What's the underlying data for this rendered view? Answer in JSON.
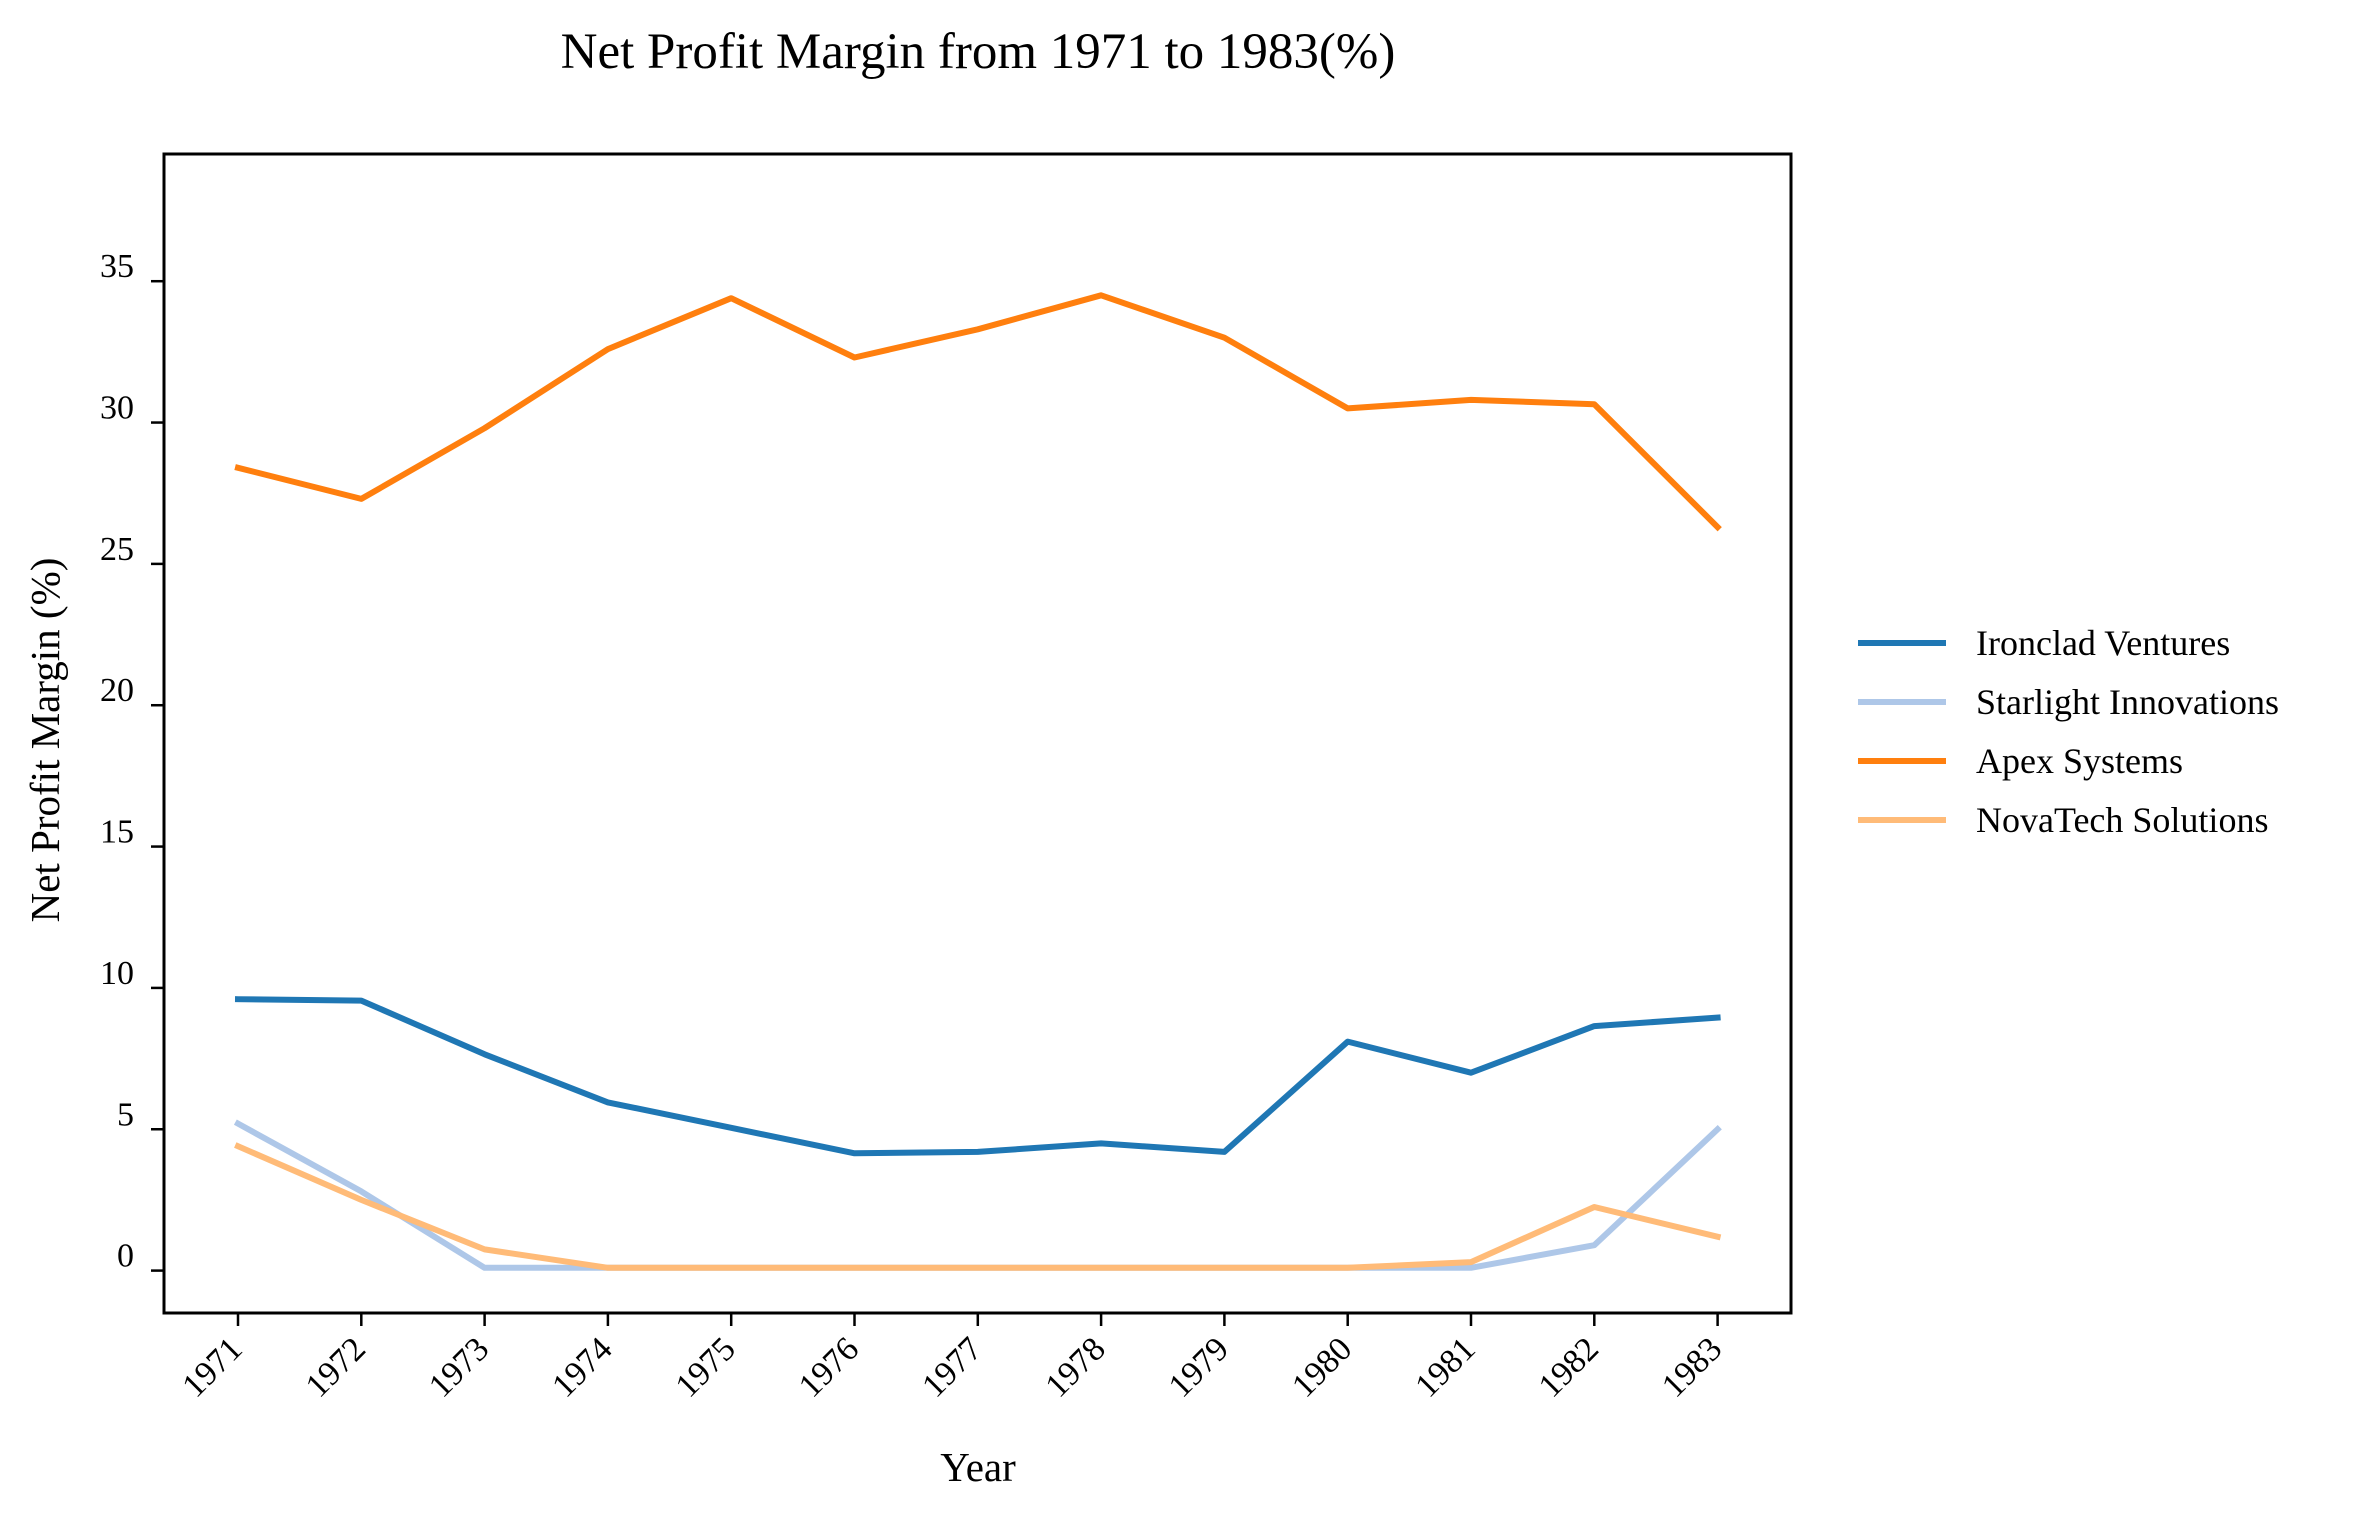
{
  "chart_data": {
    "type": "line",
    "title": "Net Profit Margin from 1971 to 1983(%)",
    "xlabel": "Year",
    "ylabel": "Net Profit Margin (%)",
    "ylim": [
      -1.5,
      39.5
    ],
    "yticks": [
      0,
      5,
      10,
      15,
      20,
      25,
      30,
      35
    ],
    "categories": [
      "1971",
      "1972",
      "1973",
      "1974",
      "1975",
      "1976",
      "1977",
      "1978",
      "1979",
      "1980",
      "1981",
      "1982",
      "1983"
    ],
    "grid": false,
    "legend_position": "right",
    "series": [
      {
        "name": "Ironclad Ventures",
        "color": "#1f77b4",
        "values": [
          9.6,
          9.55,
          7.65,
          5.95,
          5.05,
          4.15,
          4.2,
          4.5,
          4.2,
          8.1,
          7.0,
          8.65,
          8.95
        ]
      },
      {
        "name": "Starlight Innovations",
        "color": "#aec7e8",
        "values": [
          5.2,
          2.8,
          0.1,
          0.1,
          0.1,
          0.1,
          0.1,
          0.1,
          0.1,
          0.1,
          0.1,
          0.9,
          5.0
        ]
      },
      {
        "name": "Apex Systems",
        "color": "#ff7f0e",
        "values": [
          28.4,
          27.3,
          29.8,
          32.6,
          34.4,
          32.3,
          33.3,
          34.5,
          33.0,
          30.5,
          30.8,
          30.65,
          26.3
        ]
      },
      {
        "name": "NovaTech Solutions",
        "color": "#ffbb78",
        "values": [
          4.4,
          2.5,
          0.75,
          0.1,
          0.1,
          0.1,
          0.1,
          0.1,
          0.1,
          0.1,
          0.3,
          2.25,
          1.2
        ]
      }
    ]
  }
}
